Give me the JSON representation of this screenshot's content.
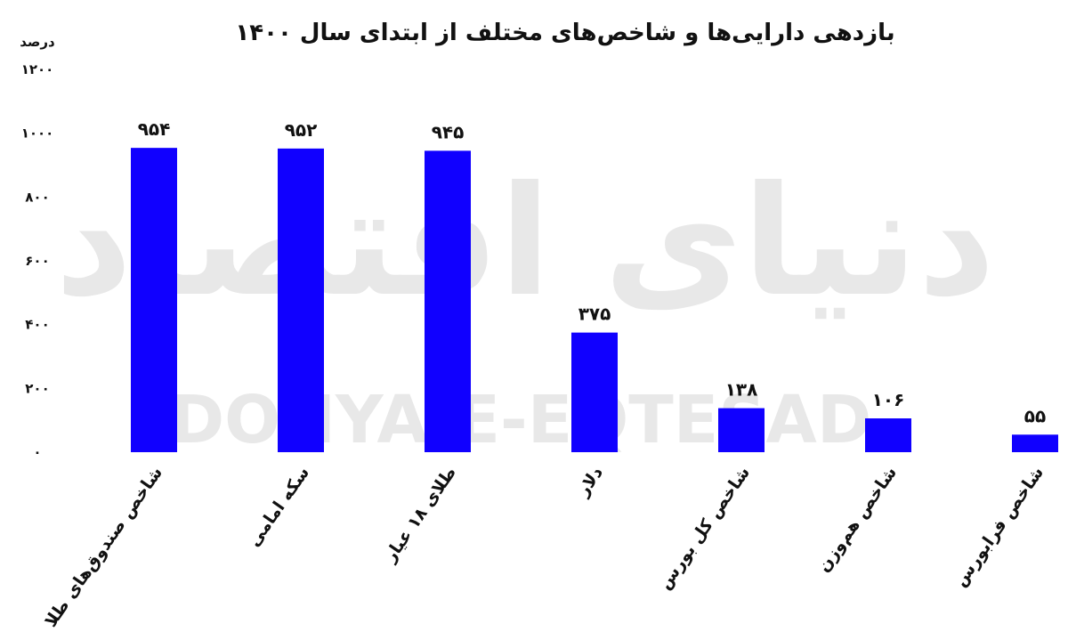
{
  "chart_data": {
    "type": "bar",
    "title": "بازدهی دارایی‌ها و شاخص‌های مختلف از ابتدای سال ۱۴۰۰",
    "xlabel": "",
    "ylabel": "درصد",
    "ylim": [
      0,
      1200
    ],
    "yticks": [
      0,
      200,
      400,
      600,
      800,
      1000,
      1200
    ],
    "ytick_labels": [
      "۰",
      "۲۰۰",
      "۴۰۰",
      "۶۰۰",
      "۸۰۰",
      "۱۰۰۰",
      "۱۲۰۰"
    ],
    "categories": [
      "شاخص صندوق‌های طلا",
      "سکه امامی",
      "طلای ۱۸ عیار",
      "دلار",
      "شاخص کل بورس",
      "شاخص هم‌وزن",
      "شاخص فرابورس"
    ],
    "values": [
      954,
      952,
      945,
      375,
      138,
      106,
      55
    ],
    "value_labels": [
      "۹۵۴",
      "۹۵۲",
      "۹۴۵",
      "۳۷۵",
      "۱۳۸",
      "۱۰۶",
      "۵۵"
    ],
    "grid": false,
    "bar_color": "#1000ff"
  },
  "watermark": {
    "latin": "DONYA-E-EQTESAD",
    "persian": "دنیای اقتصاد"
  }
}
